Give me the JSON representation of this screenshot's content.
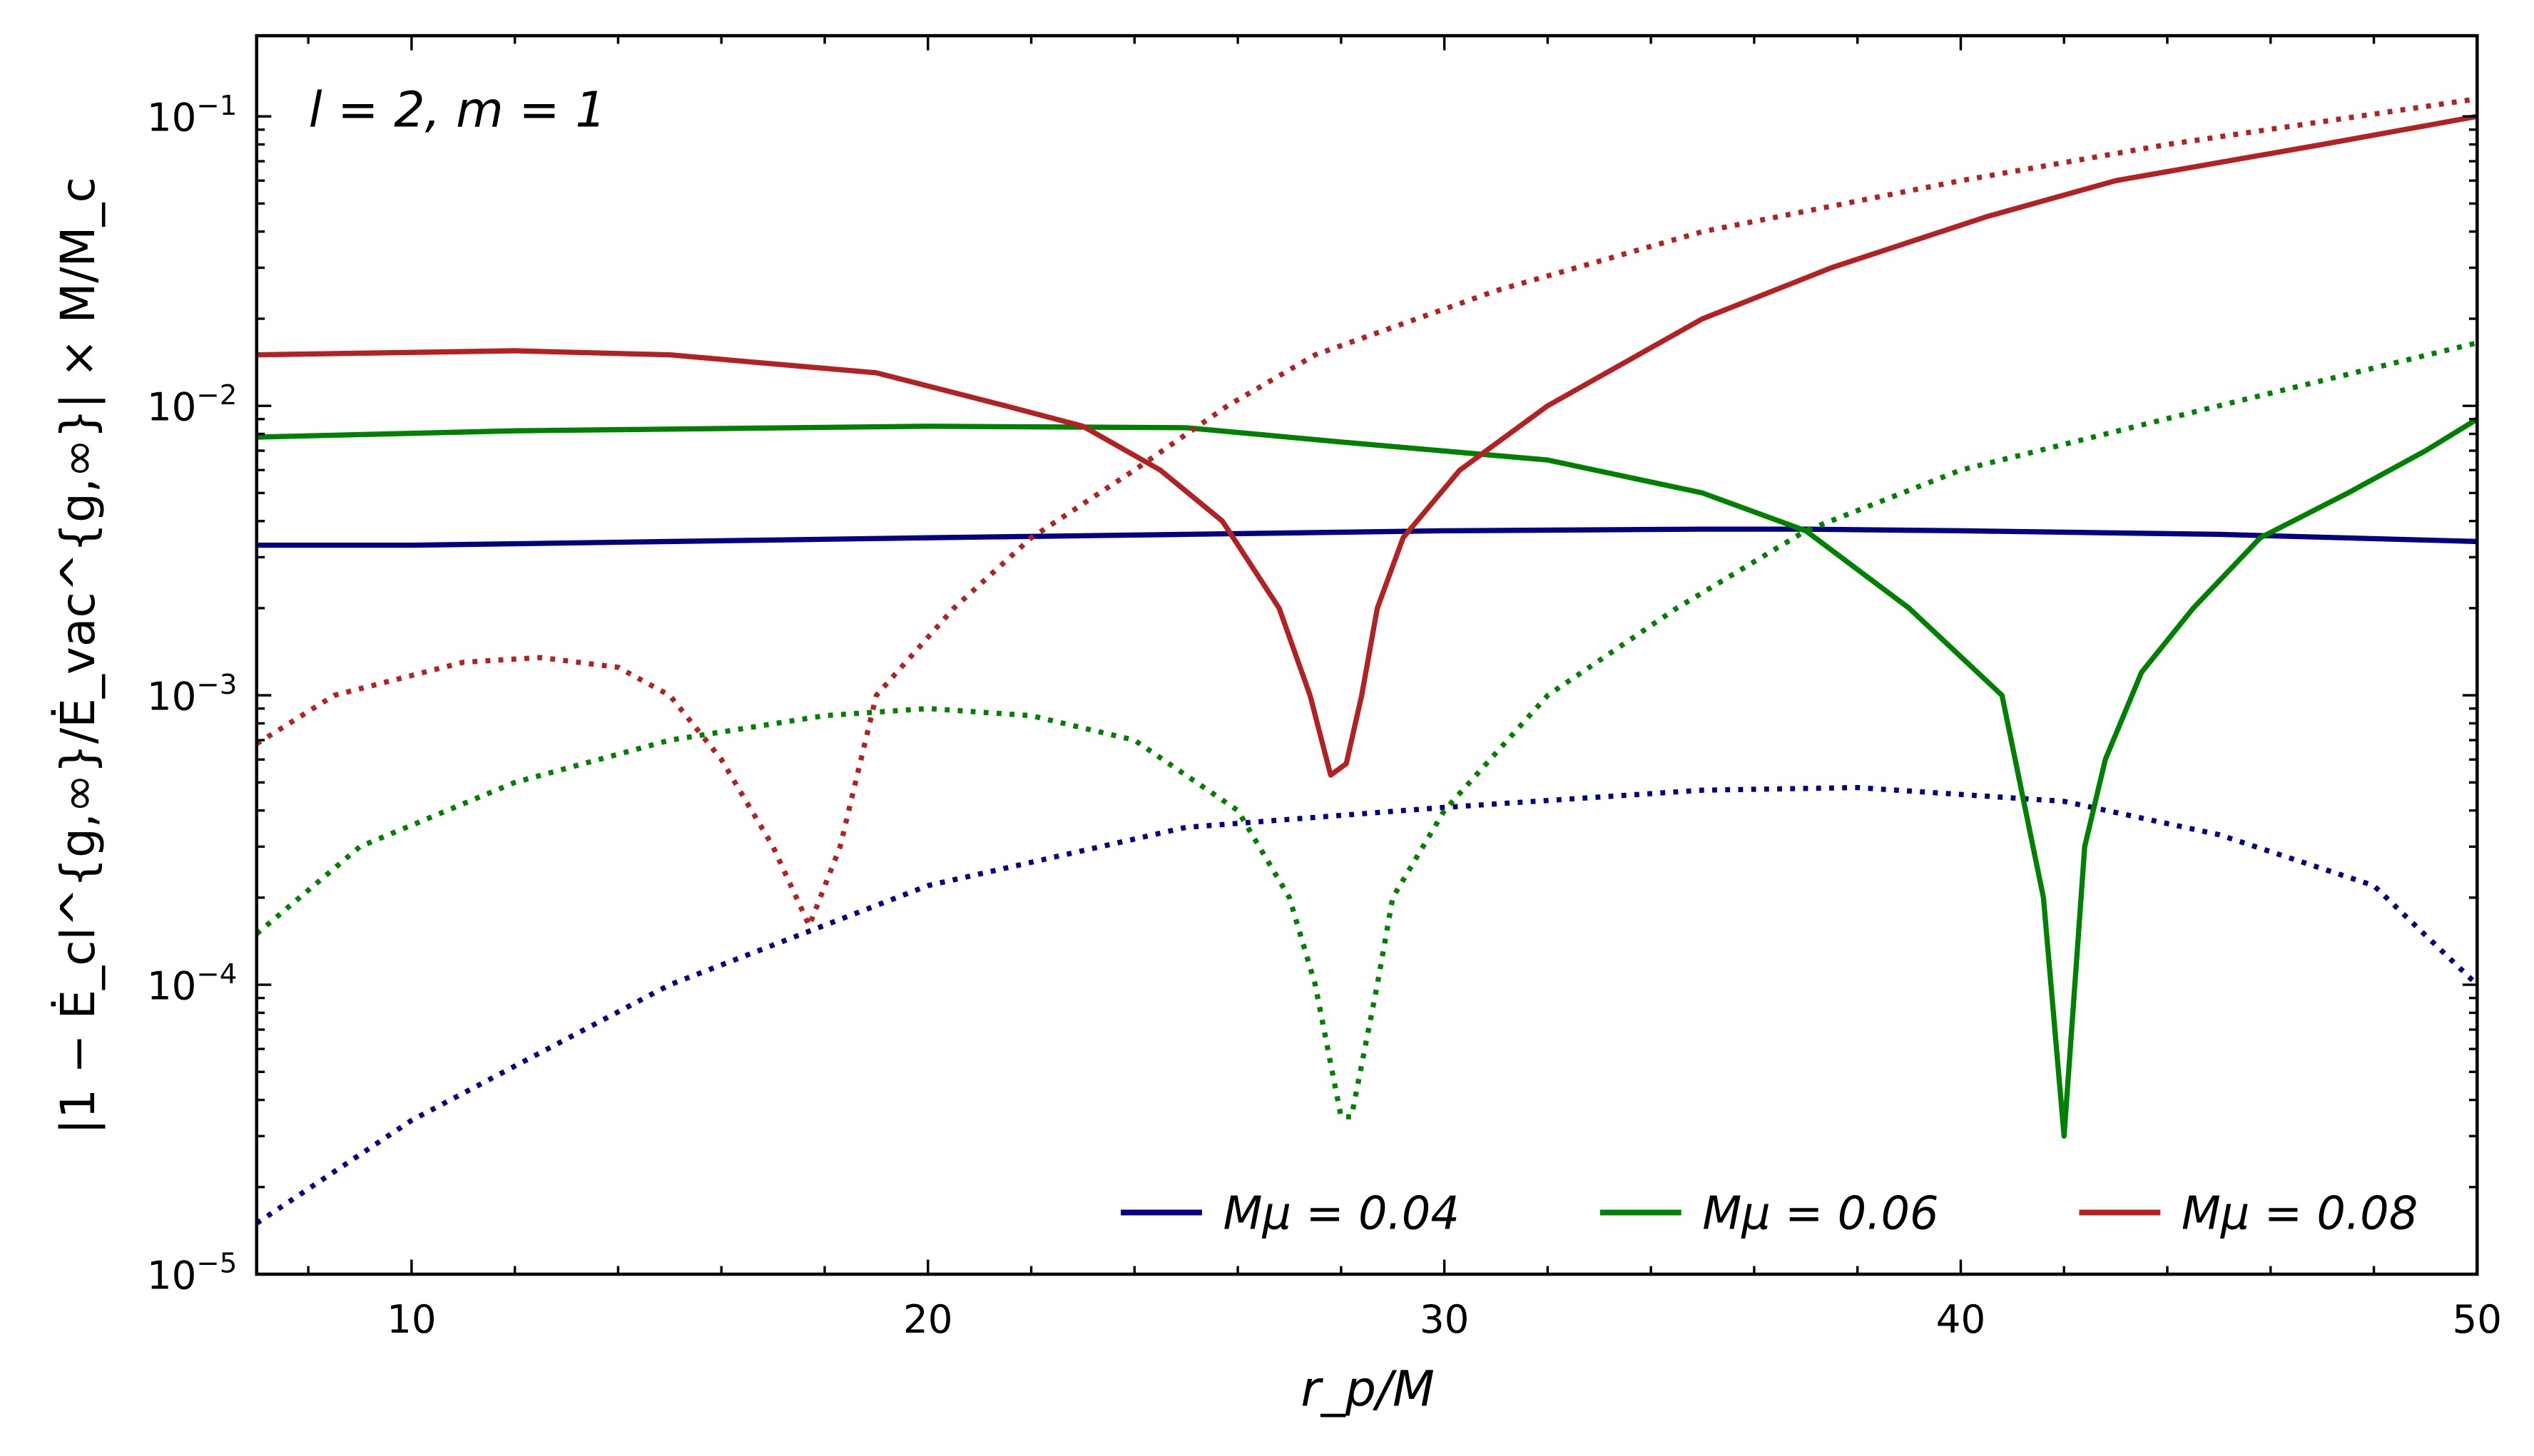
{
  "chart_data": {
    "type": "line",
    "annotation": "l = 2, m = 1",
    "xlabel": "r_p/M",
    "ylabel": "|1 − Ė_cl^{g,∞}/Ė_vac^{g,∞}| × M/M_c",
    "xlim": [
      7,
      50
    ],
    "ylim": [
      1e-05,
      0.19
    ],
    "yscale": "log",
    "xticks": [
      10,
      20,
      30,
      40,
      50
    ],
    "yticks": [
      1e-05,
      0.0001,
      0.001,
      0.01,
      0.1
    ],
    "ytick_labels": [
      "10^-5",
      "10^-4",
      "10^-3",
      "10^-2",
      "10^-1"
    ],
    "grid": false,
    "legend_position": "bottom-right",
    "legend": [
      "Mμ = 0.04",
      "Mμ = 0.06",
      "Mμ = 0.08"
    ],
    "series": [
      {
        "name": "Mμ = 0.04",
        "color": "#000080",
        "style": "solid",
        "x": [
          7,
          10,
          15,
          20,
          25,
          30,
          35,
          37,
          40,
          45,
          50
        ],
        "y": [
          0.0033,
          0.0033,
          0.0034,
          0.0035,
          0.0036,
          0.0037,
          0.00375,
          0.00375,
          0.0037,
          0.0036,
          0.0034
        ]
      },
      {
        "name": "Mμ = 0.04",
        "color": "#000080",
        "style": "dotted",
        "x": [
          7,
          10,
          15,
          20,
          25,
          30,
          35,
          38,
          42,
          45,
          48,
          50
        ],
        "y": [
          1.5e-05,
          3.4e-05,
          0.0001,
          0.00022,
          0.00035,
          0.00041,
          0.00047,
          0.00048,
          0.00043,
          0.00033,
          0.00022,
          0.0001
        ]
      },
      {
        "name": "Mμ = 0.06",
        "color": "#008000",
        "style": "solid",
        "x": [
          7,
          12,
          20,
          25,
          28,
          32,
          35,
          37,
          39,
          40.8,
          41.6,
          42,
          42.4,
          42.8,
          43.5,
          44.5,
          45.8,
          47.5,
          49,
          50
        ],
        "y": [
          0.0078,
          0.0082,
          0.0085,
          0.0084,
          0.0075,
          0.0065,
          0.005,
          0.0037,
          0.002,
          0.001,
          0.0002,
          3e-05,
          0.0003,
          0.0006,
          0.0012,
          0.002,
          0.0035,
          0.005,
          0.007,
          0.009
        ]
      },
      {
        "name": "Mμ = 0.06",
        "color": "#008000",
        "style": "dotted",
        "x": [
          7,
          9,
          12,
          15,
          18,
          20,
          22,
          24,
          26,
          27,
          27.5,
          28,
          28.2,
          28.7,
          29,
          30,
          32,
          34.5,
          37,
          40,
          45,
          50
        ],
        "y": [
          0.00015,
          0.0003,
          0.0005,
          0.0007,
          0.00085,
          0.0009,
          0.00085,
          0.0007,
          0.0004,
          0.0002,
          0.0001,
          3.5e-05,
          3.5e-05,
          0.0001,
          0.0002,
          0.0004,
          0.001,
          0.002,
          0.0037,
          0.006,
          0.01,
          0.0165
        ]
      },
      {
        "name": "Mμ = 0.08",
        "color": "#b22222",
        "style": "solid",
        "x": [
          7,
          12,
          15,
          19,
          21.5,
          23,
          24.5,
          25.7,
          26.8,
          27.4,
          27.8,
          28.1,
          28.4,
          28.7,
          29.2,
          30.3,
          32,
          35,
          37.5,
          40.5,
          43,
          47,
          50
        ],
        "y": [
          0.015,
          0.0155,
          0.015,
          0.013,
          0.01,
          0.0085,
          0.006,
          0.004,
          0.002,
          0.001,
          0.00053,
          0.00058,
          0.001,
          0.002,
          0.0035,
          0.006,
          0.01,
          0.02,
          0.03,
          0.045,
          0.06,
          0.08,
          0.1
        ]
      },
      {
        "name": "Mμ = 0.08",
        "color": "#b22222",
        "style": "dotted",
        "x": [
          7,
          8.5,
          11,
          12.5,
          14,
          15,
          16,
          17,
          17.7,
          18.3,
          19,
          20.5,
          22,
          24,
          25.8,
          27.5,
          31,
          35,
          40,
          44,
          50
        ],
        "y": [
          0.00068,
          0.001,
          0.0013,
          0.00135,
          0.00125,
          0.001,
          0.0006,
          0.0003,
          0.00016,
          0.0003,
          0.001,
          0.002,
          0.0035,
          0.006,
          0.01,
          0.015,
          0.025,
          0.04,
          0.06,
          0.08,
          0.115
        ]
      }
    ]
  }
}
